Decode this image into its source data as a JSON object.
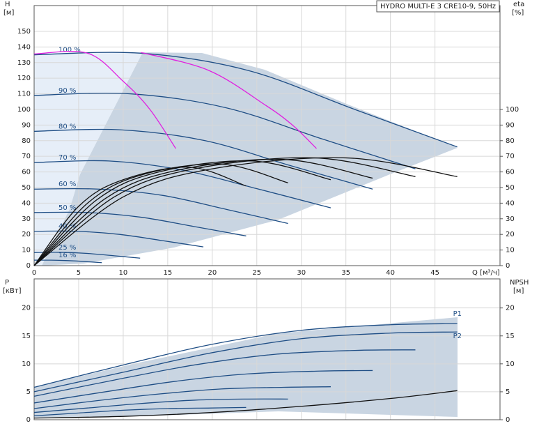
{
  "chart_data": [
    {
      "type": "line",
      "title": "HYDRO MULTI-E 3 CRE10-9, 50Hz",
      "x_label": "Q [м³/ч]",
      "y_label": "H",
      "y_unit": "[м]",
      "y2_label": "eta",
      "y2_unit": "[%]",
      "xlim": [
        0,
        52.3
      ],
      "xticks": [
        0,
        5,
        10,
        15,
        20,
        25,
        30,
        35,
        40,
        45
      ],
      "ylim": [
        0,
        166.5
      ],
      "yticks": [
        0,
        10,
        20,
        30,
        40,
        50,
        60,
        70,
        80,
        90,
        100,
        110,
        120,
        130,
        140,
        150
      ],
      "y2lim": [
        0,
        166.5
      ],
      "y2ticks": [
        0,
        10,
        20,
        30,
        40,
        50,
        60,
        70,
        80,
        90,
        100
      ],
      "grid": true,
      "series": [
        {
          "name": "100 %",
          "color": "#1f4e85",
          "x": [
            0,
            12,
            24,
            36,
            47.5
          ],
          "values": [
            135,
            136,
            125,
            100,
            76
          ]
        },
        {
          "name": "90 %",
          "color": "#1f4e85",
          "x": [
            0,
            10.8,
            21.6,
            32.4,
            42.8
          ],
          "values": [
            109,
            110,
            101,
            81,
            62
          ]
        },
        {
          "name": "80 %",
          "color": "#1f4e85",
          "x": [
            0,
            9.6,
            19.2,
            28.8,
            38
          ],
          "values": [
            86,
            87,
            80,
            64,
            49
          ]
        },
        {
          "name": "70 %",
          "color": "#1f4e85",
          "x": [
            0,
            8.4,
            16.8,
            25.2,
            33.3
          ],
          "values": [
            66,
            67,
            61,
            49,
            37
          ]
        },
        {
          "name": "60 %",
          "color": "#1f4e85",
          "x": [
            0,
            7.2,
            14.4,
            21.6,
            28.5
          ],
          "values": [
            49,
            49,
            45,
            36,
            27
          ]
        },
        {
          "name": "50 %",
          "color": "#1f4e85",
          "x": [
            0,
            6,
            12,
            18,
            23.8
          ],
          "values": [
            34,
            34,
            31,
            25,
            19
          ]
        },
        {
          "name": "40 %",
          "color": "#1f4e85",
          "x": [
            0,
            4.8,
            9.6,
            14.4,
            19
          ],
          "values": [
            22,
            22,
            20,
            16,
            12
          ]
        },
        {
          "name": "25 %",
          "color": "#1f4e85",
          "x": [
            0,
            3,
            6,
            9,
            11.9
          ],
          "values": [
            8.4,
            8.5,
            7.8,
            6.3,
            4.8
          ]
        },
        {
          "name": "16 %",
          "color": "#1f4e85",
          "x": [
            0,
            1.9,
            3.8,
            5.8,
            7.6
          ],
          "values": [
            3.5,
            3.5,
            3.2,
            2.6,
            1.9
          ]
        },
        {
          "color": "#e020e0",
          "x": [
            0,
            6,
            10,
            13,
            15.9
          ],
          "values": [
            135.5,
            136,
            118,
            100,
            75
          ]
        },
        {
          "color": "#e020e0",
          "x": [
            12,
            19.6,
            25.9,
            29,
            31.7
          ],
          "values": [
            136.5,
            125,
            103,
            90,
            75
          ]
        },
        {
          "color": "#111111",
          "axis": "y2",
          "x": [
            0,
            10,
            20,
            35,
            47.5
          ],
          "values": [
            0,
            44,
            62,
            69,
            57
          ]
        },
        {
          "color": "#111111",
          "axis": "y2",
          "x": [
            0,
            9,
            18,
            31.5,
            42.8
          ],
          "values": [
            0,
            44,
            62,
            69,
            57
          ]
        },
        {
          "color": "#111111",
          "axis": "y2",
          "x": [
            0,
            8,
            16,
            28,
            38
          ],
          "values": [
            0,
            43,
            61,
            68,
            56
          ]
        },
        {
          "color": "#111111",
          "axis": "y2",
          "x": [
            0,
            7,
            14,
            24.5,
            33.3
          ],
          "values": [
            0,
            42,
            60,
            67,
            55
          ]
        },
        {
          "color": "#111111",
          "axis": "y2",
          "x": [
            0,
            6,
            12,
            21,
            28.5
          ],
          "values": [
            0,
            40,
            58,
            65,
            53
          ]
        },
        {
          "color": "#111111",
          "axis": "y2",
          "x": [
            0,
            5,
            10,
            17.5,
            23.8
          ],
          "values": [
            0,
            38,
            55,
            63,
            51
          ]
        }
      ]
    },
    {
      "type": "line",
      "y_label": "P",
      "y_unit": "[кВт]",
      "y2_label": "NPSH",
      "y2_unit": "[м]",
      "xlim": [
        0,
        52.3
      ],
      "xticks": [
        0,
        5,
        10,
        15,
        20,
        25,
        30,
        35,
        40,
        45
      ],
      "ylim": [
        0,
        25.2
      ],
      "yticks": [
        0,
        5,
        10,
        15,
        20
      ],
      "y2lim": [
        0,
        25.2
      ],
      "y2ticks": [
        0,
        5,
        10,
        15,
        20
      ],
      "grid": true,
      "series": [
        {
          "name": "P1",
          "color": "#1f4e85",
          "x": [
            0,
            10,
            20,
            30,
            40,
            47.5
          ],
          "values": [
            5.8,
            9.8,
            13.5,
            16,
            17,
            17.2
          ]
        },
        {
          "name": "P2",
          "color": "#1f4e85",
          "x": [
            0,
            10,
            20,
            30,
            40,
            47.5
          ],
          "values": [
            5,
            8.5,
            12,
            14.5,
            15.5,
            15.7
          ]
        },
        {
          "color": "#1f4e85",
          "x": [
            0,
            9,
            18,
            27,
            36,
            42.8
          ],
          "values": [
            4.2,
            7.1,
            9.8,
            11.7,
            12.4,
            12.5
          ]
        },
        {
          "color": "#1f4e85",
          "x": [
            0,
            8,
            16,
            24,
            32,
            38
          ],
          "values": [
            3,
            5,
            6.9,
            8.2,
            8.7,
            8.8
          ]
        },
        {
          "color": "#1f4e85",
          "x": [
            0,
            7,
            14,
            21,
            28,
            33.3
          ],
          "values": [
            2,
            3.4,
            4.6,
            5.5,
            5.8,
            5.9
          ]
        },
        {
          "color": "#1f4e85",
          "x": [
            0,
            6,
            12,
            18,
            24,
            28.5
          ],
          "values": [
            1.3,
            2.1,
            2.9,
            3.5,
            3.7,
            3.7
          ]
        },
        {
          "color": "#1f4e85",
          "x": [
            0,
            5,
            10,
            15,
            20,
            23.8
          ],
          "values": [
            0.7,
            1.2,
            1.7,
            2,
            2.1,
            2.2
          ]
        },
        {
          "color": "#111111",
          "axis": "y2",
          "x": [
            0,
            10,
            20,
            30,
            40,
            47.5
          ],
          "values": [
            0.3,
            0.6,
            1.3,
            2.4,
            3.8,
            5.2
          ]
        }
      ]
    }
  ]
}
